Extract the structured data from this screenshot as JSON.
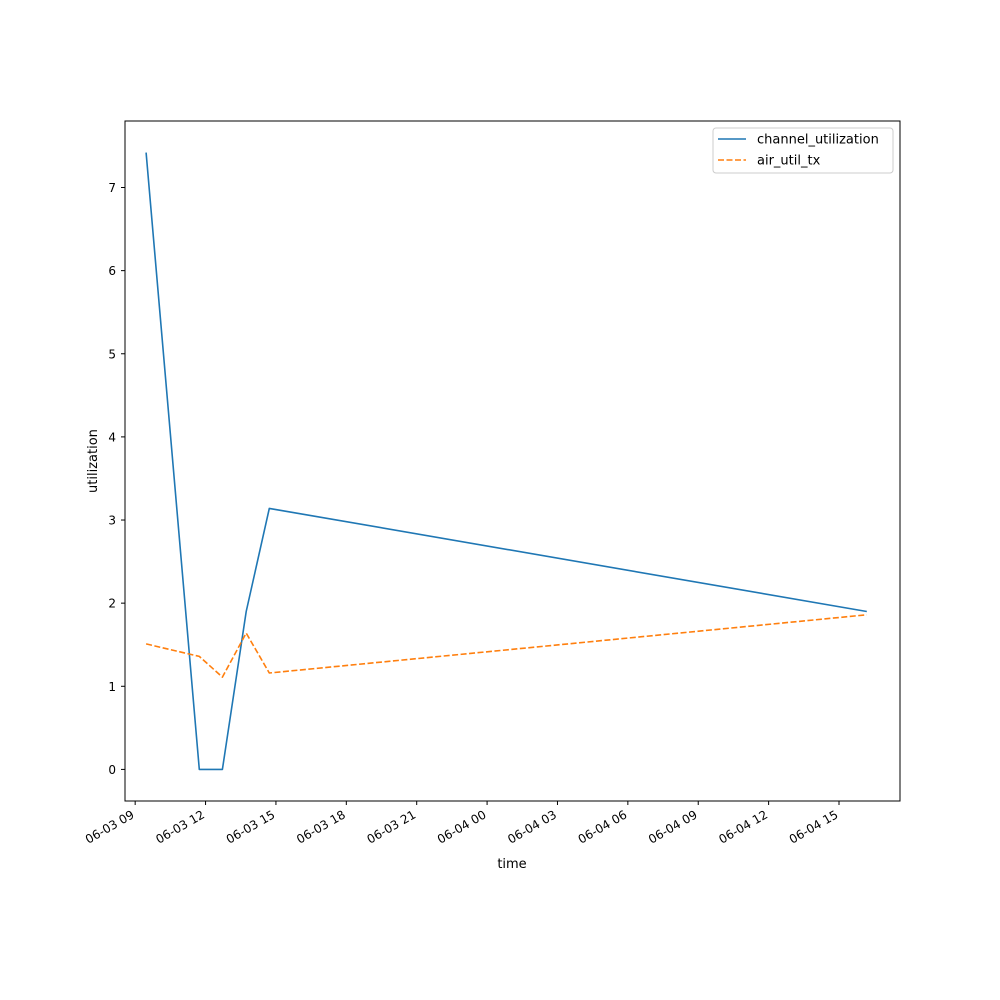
{
  "chart_data": {
    "type": "line",
    "title": "",
    "xlabel": "time",
    "ylabel": "utilization",
    "xlim": [
      "2023-06-03 08:34",
      "2023-06-04 17:36"
    ],
    "ylim": [
      -0.38,
      7.8
    ],
    "grid": false,
    "legend_position": "top-right",
    "x_ticks": [
      {
        "value": "2023-06-03 09:00",
        "label": "06-03 09"
      },
      {
        "value": "2023-06-03 12:00",
        "label": "06-03 12"
      },
      {
        "value": "2023-06-03 15:00",
        "label": "06-03 15"
      },
      {
        "value": "2023-06-03 18:00",
        "label": "06-03 18"
      },
      {
        "value": "2023-06-03 21:00",
        "label": "06-03 21"
      },
      {
        "value": "2023-06-04 00:00",
        "label": "06-04 00"
      },
      {
        "value": "2023-06-04 03:00",
        "label": "06-04 03"
      },
      {
        "value": "2023-06-04 06:00",
        "label": "06-04 06"
      },
      {
        "value": "2023-06-04 09:00",
        "label": "06-04 09"
      },
      {
        "value": "2023-06-04 12:00",
        "label": "06-04 12"
      },
      {
        "value": "2023-06-04 15:00",
        "label": "06-04 15"
      }
    ],
    "y_ticks": [
      0,
      1,
      2,
      3,
      4,
      5,
      6,
      7
    ],
    "series": [
      {
        "name": "channel_utilization",
        "color": "#1f77b4",
        "style": "solid",
        "points": [
          {
            "x": "2023-06-03 09:28",
            "y": 7.42
          },
          {
            "x": "2023-06-03 11:44",
            "y": 0.0
          },
          {
            "x": "2023-06-03 12:43",
            "y": 0.0
          },
          {
            "x": "2023-06-03 13:44",
            "y": 1.9
          },
          {
            "x": "2023-06-03 14:43",
            "y": 3.14
          },
          {
            "x": "2023-06-04 16:11",
            "y": 1.9
          }
        ]
      },
      {
        "name": "air_util_tx",
        "color": "#ff7f0e",
        "style": "dashed",
        "points": [
          {
            "x": "2023-06-03 09:28",
            "y": 1.51
          },
          {
            "x": "2023-06-03 11:44",
            "y": 1.36
          },
          {
            "x": "2023-06-03 12:43",
            "y": 1.11
          },
          {
            "x": "2023-06-03 13:44",
            "y": 1.64
          },
          {
            "x": "2023-06-03 14:43",
            "y": 1.16
          },
          {
            "x": "2023-06-04 16:11",
            "y": 1.86
          }
        ]
      }
    ]
  }
}
